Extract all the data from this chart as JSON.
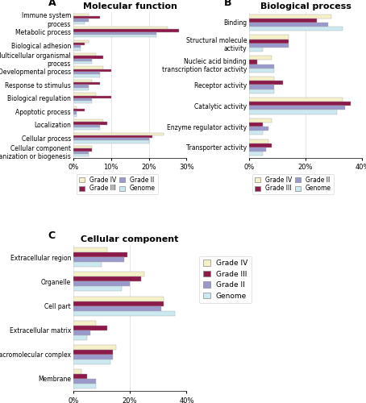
{
  "panel_A": {
    "title": "Molecular function",
    "categories": [
      "Immune system\nprocess",
      "Metabolic process",
      "Biological adhesion",
      "Multicellular organismal\nprocess",
      "Developmental process",
      "Response to stimulus",
      "Biological regulation",
      "Apoptotic process",
      "Localization",
      "Cellular process",
      "Cellular component\norganization or biogenesis"
    ],
    "gradeIV": [
      4,
      25,
      4,
      6,
      8,
      5,
      6,
      1,
      8,
      24,
      5
    ],
    "gradeIII": [
      7,
      28,
      3,
      8,
      10,
      7,
      10,
      3,
      9,
      21,
      5
    ],
    "gradeII": [
      4,
      22,
      2,
      5,
      7,
      4,
      5,
      1,
      7,
      20,
      4
    ],
    "genome": [
      3,
      22,
      2,
      5,
      7,
      4,
      5,
      1,
      7,
      20,
      4
    ],
    "xlim": [
      0,
      30
    ],
    "xticks": [
      0,
      10,
      20,
      30
    ],
    "xticklabels": [
      "0%",
      "10%",
      "20%",
      "30%"
    ]
  },
  "panel_B": {
    "title": "Biological process",
    "categories": [
      "Binding",
      "Structural molecule\nactivity",
      "Nucleic acid binding\ntranscription factor activity",
      "Receptor activity",
      "Catalytic activity",
      "Enzyme regulator activity",
      "Transporter activity"
    ],
    "gradeIV": [
      29,
      14,
      8,
      9,
      33,
      8,
      7
    ],
    "gradeIII": [
      24,
      14,
      3,
      12,
      36,
      5,
      8
    ],
    "gradeII": [
      28,
      14,
      9,
      9,
      34,
      7,
      6
    ],
    "genome": [
      33,
      5,
      9,
      9,
      31,
      5,
      5
    ],
    "xlim": [
      0,
      40
    ],
    "xticks": [
      0,
      20,
      40
    ],
    "xticklabels": [
      "0%",
      "20%",
      "40%"
    ]
  },
  "panel_C": {
    "title": "Cellular component",
    "categories": [
      "Extracellular region",
      "Organelle",
      "Cell part",
      "Extracellular matrix",
      "Macromolecular complex",
      "Membrane"
    ],
    "gradeIV": [
      12,
      25,
      32,
      8,
      15,
      3
    ],
    "gradeIII": [
      19,
      24,
      32,
      12,
      14,
      5
    ],
    "gradeII": [
      18,
      20,
      31,
      6,
      14,
      8
    ],
    "genome": [
      10,
      17,
      36,
      5,
      13,
      8
    ],
    "xlim": [
      0,
      40
    ],
    "xticks": [
      0,
      20,
      40
    ],
    "xticklabels": [
      "0%",
      "20%",
      "40%"
    ]
  },
  "colors": {
    "gradeIV": "#f5f0c8",
    "gradeIII": "#8b1a4a",
    "gradeII": "#9999cc",
    "genome": "#cce8f0"
  },
  "legend_labels": [
    "Grade IV",
    "Grade III",
    "Grade II",
    "Genome"
  ],
  "bar_height": 0.2
}
